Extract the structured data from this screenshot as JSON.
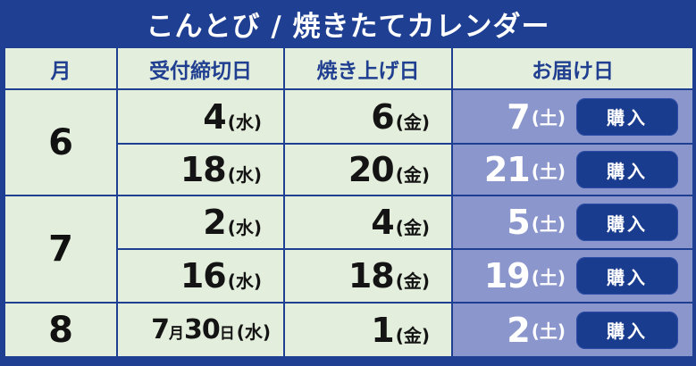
{
  "title": "こんとび / 焼きたてカレンダー",
  "headers": {
    "month": "月",
    "deadline": "受付締切日",
    "baking": "焼き上げ日",
    "delivery": "お届け日"
  },
  "colors": {
    "frame": "#1e3f92",
    "cell_bg": "#e4eedc",
    "delivery_bg": "#8a96cc",
    "button_bg": "#1a3c8e",
    "header_text": "#203f91"
  },
  "buy_label": "購入",
  "months": [
    {
      "month": "6",
      "rows": [
        {
          "deadline": "4",
          "deadline_dow": "(水)",
          "baking": "6",
          "baking_dow": "(金)",
          "delivery": "7",
          "delivery_dow": "(土)"
        },
        {
          "deadline": "18",
          "deadline_dow": "(水)",
          "baking": "20",
          "baking_dow": "(金)",
          "delivery": "21",
          "delivery_dow": "(土)"
        }
      ]
    },
    {
      "month": "7",
      "rows": [
        {
          "deadline": "2",
          "deadline_dow": "(水)",
          "baking": "4",
          "baking_dow": "(金)",
          "delivery": "5",
          "delivery_dow": "(土)"
        },
        {
          "deadline": "16",
          "deadline_dow": "(水)",
          "baking": "18",
          "baking_dow": "(金)",
          "delivery": "19",
          "delivery_dow": "(土)"
        }
      ]
    },
    {
      "month": "8",
      "rows": [
        {
          "deadline_month": "7",
          "deadline_month_unit": "月",
          "deadline_day": "30",
          "deadline_day_unit": "日",
          "deadline_dow": "(水)",
          "baking": "1",
          "baking_dow": "(金)",
          "delivery": "2",
          "delivery_dow": "(土)"
        }
      ]
    }
  ]
}
